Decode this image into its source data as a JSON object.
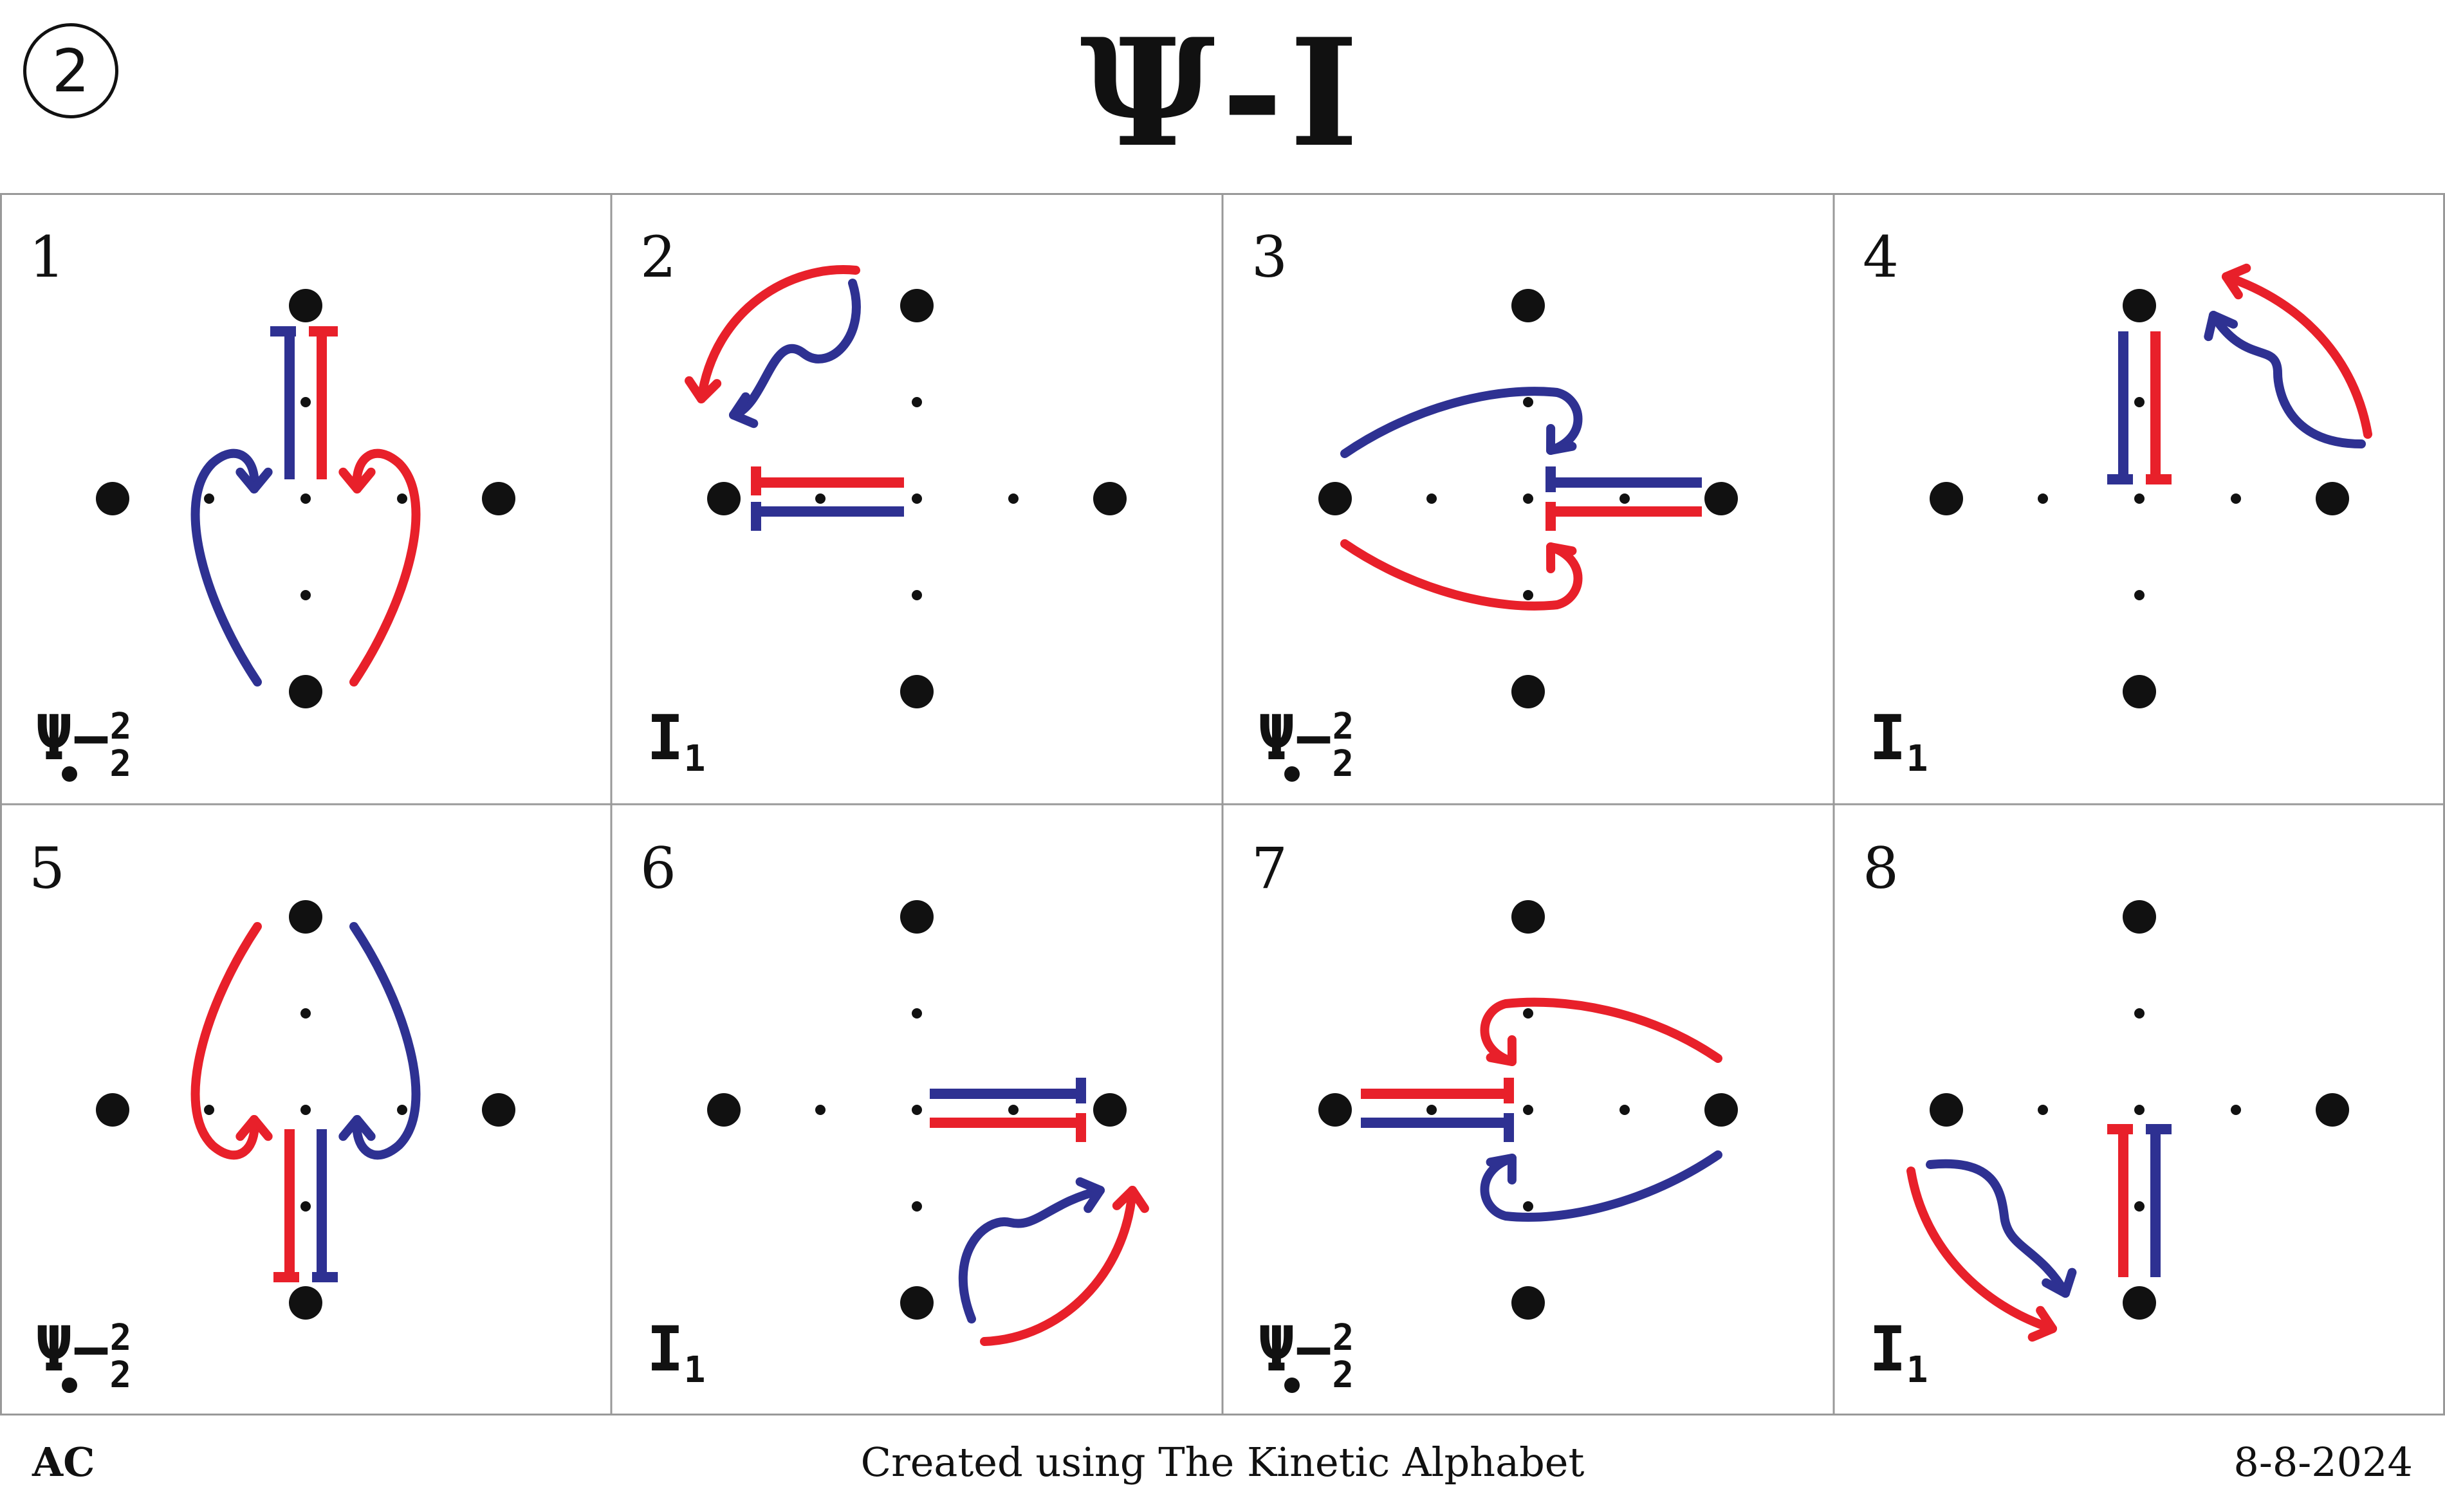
{
  "header": {
    "badge": "2",
    "title": "Ψ-I"
  },
  "colors": {
    "red": "#e8202a",
    "blue": "#2e3192",
    "dot": "#111111",
    "grid_line": "#999999"
  },
  "panels": [
    {
      "number": "1",
      "notation": {
        "symbol": "Ψ",
        "dash": "−",
        "sup": "2",
        "sub": "2"
      }
    },
    {
      "number": "2",
      "notation": {
        "symbol": "I",
        "sub": "1"
      }
    },
    {
      "number": "3",
      "notation": {
        "symbol": "Ψ",
        "dash": "−",
        "sup": "2",
        "sub": "2"
      }
    },
    {
      "number": "4",
      "notation": {
        "symbol": "I",
        "sub": "1"
      }
    },
    {
      "number": "5",
      "notation": {
        "symbol": "Ψ",
        "dash": "−",
        "sup": "2",
        "sub": "2"
      }
    },
    {
      "number": "6",
      "notation": {
        "symbol": "I",
        "sub": "1"
      }
    },
    {
      "number": "7",
      "notation": {
        "symbol": "Ψ",
        "dash": "−",
        "sup": "2",
        "sub": "2"
      }
    },
    {
      "number": "8",
      "notation": {
        "symbol": "I",
        "sub": "1"
      }
    }
  ],
  "footer": {
    "left": "AC",
    "center": "Created using The Kinetic Alphabet",
    "right": "8-8-2024"
  }
}
